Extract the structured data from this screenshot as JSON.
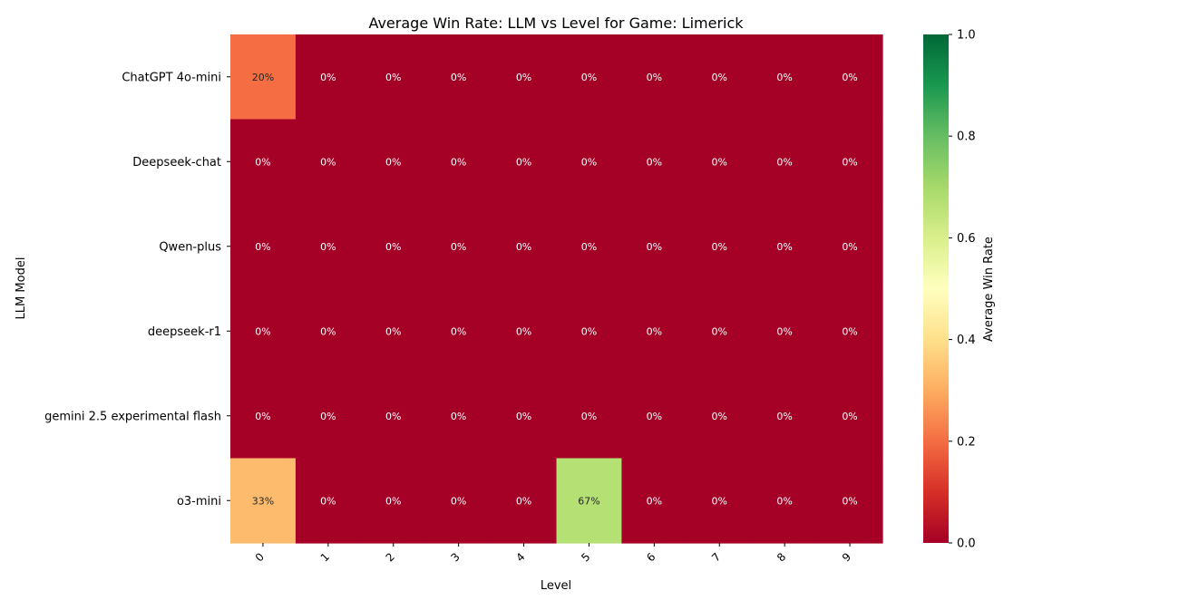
{
  "chart_data": {
    "type": "heatmap",
    "title": "Average Win Rate: LLM vs Level for Game: Limerick",
    "xlabel": "Level",
    "ylabel": "LLM Model",
    "x_categories": [
      "0",
      "1",
      "2",
      "3",
      "4",
      "5",
      "6",
      "7",
      "8",
      "9"
    ],
    "y_categories": [
      "ChatGPT 4o-mini",
      "Deepseek-chat",
      "Qwen-plus",
      "deepseek-r1",
      "gemini 2.5 experimental flash",
      "o3-mini"
    ],
    "values": [
      [
        0.2,
        0,
        0,
        0,
        0,
        0.0,
        0,
        0,
        0,
        0
      ],
      [
        0.0,
        0,
        0,
        0,
        0,
        0.0,
        0,
        0,
        0,
        0
      ],
      [
        0.0,
        0,
        0,
        0,
        0,
        0.0,
        0,
        0,
        0,
        0
      ],
      [
        0.0,
        0,
        0,
        0,
        0,
        0.0,
        0,
        0,
        0,
        0
      ],
      [
        0.0,
        0,
        0,
        0,
        0,
        0.0,
        0,
        0,
        0,
        0
      ],
      [
        0.33,
        0,
        0,
        0,
        0,
        0.67,
        0,
        0,
        0,
        0
      ]
    ],
    "cell_labels": [
      [
        "20%",
        "0%",
        "0%",
        "0%",
        "0%",
        "0%",
        "0%",
        "0%",
        "0%",
        "0%"
      ],
      [
        "0%",
        "0%",
        "0%",
        "0%",
        "0%",
        "0%",
        "0%",
        "0%",
        "0%",
        "0%"
      ],
      [
        "0%",
        "0%",
        "0%",
        "0%",
        "0%",
        "0%",
        "0%",
        "0%",
        "0%",
        "0%"
      ],
      [
        "0%",
        "0%",
        "0%",
        "0%",
        "0%",
        "0%",
        "0%",
        "0%",
        "0%",
        "0%"
      ],
      [
        "0%",
        "0%",
        "0%",
        "0%",
        "0%",
        "0%",
        "0%",
        "0%",
        "0%",
        "0%"
      ],
      [
        "33%",
        "0%",
        "0%",
        "0%",
        "0%",
        "67%",
        "0%",
        "0%",
        "0%",
        "0%"
      ]
    ],
    "colormap": "RdYlGn",
    "colorbar": {
      "label": "Average Win Rate",
      "range": [
        0,
        1
      ],
      "ticks": [
        "0.0",
        "0.2",
        "0.4",
        "0.6",
        "0.8",
        "1.0"
      ]
    },
    "grid": false,
    "legend": "colorbar-right"
  }
}
